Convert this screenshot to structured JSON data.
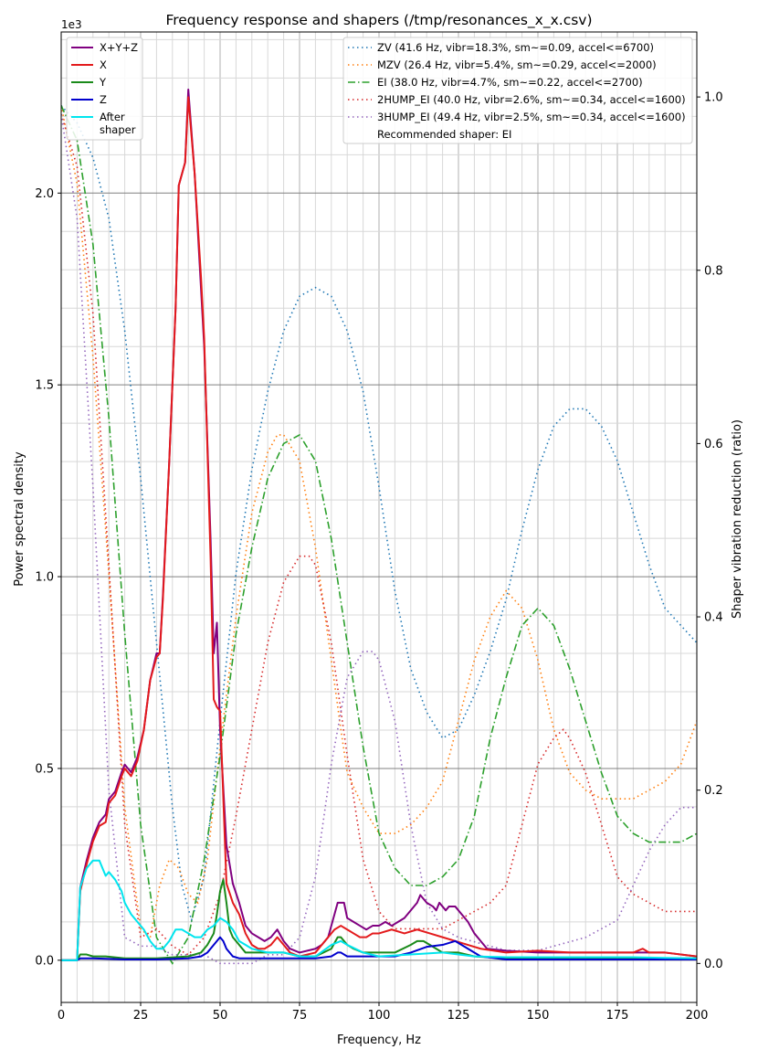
{
  "chart_data": {
    "type": "line",
    "title": "Frequency response and shapers (/tmp/resonances_x_x.csv)",
    "xlabel": "Frequency, Hz",
    "ylabel": "Power spectral density",
    "y2label": "Shaper vibration reduction (ratio)",
    "y_offset_label": "1e3",
    "xlim": [
      0,
      200
    ],
    "ylim": [
      -0.11,
      2.42
    ],
    "y2lim": [
      -0.045,
      1.075
    ],
    "grid": true,
    "legend_left": "upper-left",
    "legend_right": "upper-right",
    "x_ticks": [
      "0",
      "25",
      "50",
      "75",
      "100",
      "125",
      "150",
      "175",
      "200"
    ],
    "y_ticks": [
      "0.0",
      "0.5",
      "1.0",
      "1.5",
      "2.0"
    ],
    "y2_ticks": [
      "0.0",
      "0.2",
      "0.4",
      "0.6",
      "0.8",
      "1.0"
    ],
    "psd_series": [
      {
        "name": "X+Y+Z",
        "color": "#800080",
        "width": 2,
        "x": [
          0,
          5,
          6,
          8,
          10,
          12,
          14,
          15,
          17,
          19,
          20,
          22,
          24,
          26,
          28,
          30,
          31,
          32,
          34,
          36,
          37,
          39,
          40,
          42,
          44,
          45,
          47,
          48,
          49,
          50,
          52,
          54,
          56,
          58,
          60,
          62,
          64,
          66,
          68,
          70,
          72,
          75,
          80,
          82,
          84,
          86,
          87,
          88,
          89,
          90,
          92,
          94,
          96,
          98,
          100,
          102,
          104,
          106,
          108,
          110,
          112,
          113,
          115,
          117,
          118,
          119,
          120,
          121,
          122,
          124,
          126,
          128,
          130,
          132,
          134,
          140,
          150,
          160,
          170,
          180,
          190,
          200
        ],
        "y": [
          0,
          0,
          0.19,
          0.26,
          0.32,
          0.36,
          0.38,
          0.42,
          0.44,
          0.49,
          0.51,
          0.49,
          0.53,
          0.6,
          0.73,
          0.8,
          0.8,
          0.95,
          1.3,
          1.7,
          2.02,
          2.08,
          2.27,
          2.05,
          1.75,
          1.6,
          1.1,
          0.8,
          0.88,
          0.6,
          0.3,
          0.2,
          0.15,
          0.09,
          0.07,
          0.06,
          0.05,
          0.06,
          0.08,
          0.05,
          0.03,
          0.02,
          0.03,
          0.04,
          0.06,
          0.12,
          0.15,
          0.15,
          0.15,
          0.11,
          0.1,
          0.09,
          0.08,
          0.09,
          0.09,
          0.1,
          0.09,
          0.1,
          0.11,
          0.13,
          0.15,
          0.17,
          0.15,
          0.14,
          0.13,
          0.15,
          0.14,
          0.13,
          0.14,
          0.14,
          0.12,
          0.1,
          0.07,
          0.05,
          0.03,
          0.025,
          0.02,
          0.02,
          0.02,
          0.02,
          0.02,
          0.01
        ]
      },
      {
        "name": "X",
        "color": "#e31a1c",
        "width": 2,
        "x": [
          0,
          5,
          6,
          8,
          10,
          12,
          14,
          15,
          17,
          19,
          20,
          22,
          24,
          26,
          28,
          30,
          31,
          32,
          34,
          36,
          37,
          39,
          40,
          42,
          44,
          45,
          47,
          48,
          49,
          50,
          52,
          54,
          56,
          58,
          60,
          62,
          64,
          66,
          68,
          70,
          72,
          75,
          80,
          82,
          84,
          86,
          88,
          90,
          92,
          94,
          96,
          98,
          100,
          104,
          108,
          112,
          116,
          120,
          124,
          128,
          132,
          140,
          150,
          160,
          170,
          180,
          183,
          185,
          190,
          200
        ],
        "y": [
          0,
          0,
          0.18,
          0.25,
          0.31,
          0.35,
          0.36,
          0.41,
          0.43,
          0.48,
          0.5,
          0.48,
          0.52,
          0.6,
          0.73,
          0.79,
          0.8,
          0.94,
          1.3,
          1.7,
          2.02,
          2.08,
          2.25,
          2.05,
          1.78,
          1.62,
          1.05,
          0.68,
          0.66,
          0.65,
          0.2,
          0.15,
          0.12,
          0.07,
          0.04,
          0.03,
          0.03,
          0.04,
          0.06,
          0.04,
          0.02,
          0.01,
          0.02,
          0.04,
          0.06,
          0.08,
          0.09,
          0.08,
          0.07,
          0.06,
          0.06,
          0.07,
          0.07,
          0.08,
          0.07,
          0.08,
          0.07,
          0.06,
          0.05,
          0.04,
          0.03,
          0.02,
          0.025,
          0.02,
          0.02,
          0.02,
          0.03,
          0.02,
          0.02,
          0.01
        ]
      },
      {
        "name": "Y",
        "color": "#1a8a1a",
        "width": 2,
        "x": [
          0,
          5,
          6,
          8,
          10,
          14,
          20,
          30,
          40,
          44,
          46,
          48,
          49,
          50,
          51,
          52,
          53,
          54,
          56,
          58,
          60,
          65,
          70,
          75,
          80,
          85,
          87,
          88,
          90,
          92,
          95,
          100,
          105,
          110,
          112,
          114,
          116,
          118,
          120,
          125,
          130,
          140,
          150,
          160,
          170,
          180,
          200
        ],
        "y": [
          0,
          0,
          0.015,
          0.015,
          0.01,
          0.01,
          0.005,
          0.005,
          0.01,
          0.02,
          0.04,
          0.07,
          0.12,
          0.18,
          0.21,
          0.15,
          0.08,
          0.06,
          0.04,
          0.02,
          0.02,
          0.02,
          0.02,
          0.01,
          0.01,
          0.03,
          0.06,
          0.06,
          0.04,
          0.03,
          0.02,
          0.02,
          0.02,
          0.04,
          0.05,
          0.05,
          0.04,
          0.03,
          0.02,
          0.02,
          0.01,
          0.005,
          0.005,
          0.005,
          0.005,
          0.005,
          0.005
        ]
      },
      {
        "name": "Z",
        "color": "#0000cd",
        "width": 2,
        "x": [
          0,
          5,
          6,
          10,
          20,
          30,
          40,
          44,
          46,
          48,
          50,
          51,
          52,
          54,
          56,
          58,
          60,
          70,
          80,
          85,
          87,
          88,
          90,
          95,
          100,
          105,
          110,
          115,
          120,
          124,
          128,
          132,
          140,
          150,
          160,
          170,
          180,
          200
        ],
        "y": [
          0,
          0,
          0.005,
          0.005,
          0.002,
          0.002,
          0.005,
          0.01,
          0.02,
          0.04,
          0.06,
          0.05,
          0.03,
          0.01,
          0.005,
          0.005,
          0.005,
          0.005,
          0.005,
          0.01,
          0.02,
          0.02,
          0.01,
          0.01,
          0.01,
          0.01,
          0.02,
          0.035,
          0.04,
          0.05,
          0.03,
          0.01,
          0.002,
          0.002,
          0.002,
          0.002,
          0.002,
          0.002
        ]
      },
      {
        "name": "After\nshaper",
        "color": "#00e5ee",
        "width": 2,
        "x": [
          0,
          5,
          6,
          8,
          10,
          12,
          14,
          15,
          17,
          19,
          20,
          22,
          24,
          26,
          28,
          30,
          32,
          34,
          36,
          38,
          40,
          42,
          44,
          46,
          48,
          50,
          52,
          54,
          56,
          58,
          60,
          65,
          70,
          75,
          80,
          85,
          88,
          90,
          95,
          100,
          110,
          120,
          125,
          130,
          140,
          150,
          160,
          170,
          180,
          190,
          200
        ],
        "y": [
          0,
          0,
          0.19,
          0.24,
          0.26,
          0.26,
          0.22,
          0.23,
          0.21,
          0.18,
          0.15,
          0.12,
          0.1,
          0.08,
          0.05,
          0.03,
          0.03,
          0.05,
          0.08,
          0.08,
          0.07,
          0.06,
          0.06,
          0.08,
          0.09,
          0.11,
          0.1,
          0.08,
          0.05,
          0.04,
          0.03,
          0.02,
          0.02,
          0.01,
          0.01,
          0.04,
          0.05,
          0.04,
          0.02,
          0.01,
          0.015,
          0.02,
          0.015,
          0.01,
          0.008,
          0.008,
          0.008,
          0.008,
          0.008,
          0.006,
          0.005
        ]
      }
    ],
    "shaper_series": [
      {
        "name": "ZV (41.6 Hz, vibr=18.3%, sm~=0.09, accel<=6700)",
        "color": "#1f77b4",
        "dash": "1.5,3.5",
        "x": [
          0,
          5,
          10,
          15,
          20,
          25,
          30,
          35,
          38,
          41,
          45,
          50,
          55,
          60,
          65,
          70,
          75,
          80,
          85,
          90,
          95,
          100,
          105,
          110,
          115,
          120,
          125,
          130,
          135,
          140,
          145,
          150,
          155,
          160,
          165,
          170,
          175,
          180,
          185,
          190,
          195,
          200
        ],
        "y": [
          0.99,
          0.97,
          0.93,
          0.86,
          0.73,
          0.56,
          0.37,
          0.18,
          0.09,
          0.05,
          0.1,
          0.28,
          0.45,
          0.57,
          0.66,
          0.73,
          0.77,
          0.78,
          0.77,
          0.73,
          0.66,
          0.55,
          0.43,
          0.34,
          0.29,
          0.26,
          0.27,
          0.31,
          0.36,
          0.42,
          0.5,
          0.57,
          0.62,
          0.64,
          0.64,
          0.62,
          0.58,
          0.52,
          0.46,
          0.41,
          0.39,
          0.37
        ]
      },
      {
        "name": "MZV (26.4 Hz, vibr=5.4%, sm~=0.29, accel<=2000)",
        "color": "#ff7f0e",
        "dash": "1.5,3.5",
        "x": [
          0,
          5,
          10,
          15,
          20,
          25,
          28,
          31,
          34,
          37,
          40,
          43,
          46,
          50,
          55,
          60,
          65,
          68,
          70,
          75,
          80,
          85,
          88,
          90,
          95,
          100,
          105,
          110,
          115,
          120,
          125,
          130,
          135,
          140,
          145,
          150,
          155,
          160,
          165,
          170,
          175,
          180,
          185,
          190,
          195,
          200
        ],
        "y": [
          0.99,
          0.9,
          0.7,
          0.45,
          0.18,
          0.04,
          0.03,
          0.09,
          0.12,
          0.11,
          0.08,
          0.07,
          0.12,
          0.25,
          0.4,
          0.52,
          0.59,
          0.61,
          0.61,
          0.58,
          0.48,
          0.35,
          0.27,
          0.22,
          0.18,
          0.15,
          0.15,
          0.16,
          0.18,
          0.21,
          0.28,
          0.35,
          0.4,
          0.43,
          0.41,
          0.35,
          0.27,
          0.22,
          0.2,
          0.19,
          0.19,
          0.19,
          0.2,
          0.21,
          0.23,
          0.28
        ]
      },
      {
        "name": "EI (38.0 Hz, vibr=4.7%, sm~=0.22, accel<=2700)",
        "color": "#2ca02c",
        "dash": "8,3,1.5,3",
        "x": [
          0,
          5,
          10,
          15,
          20,
          25,
          30,
          35,
          40,
          45,
          50,
          55,
          60,
          65,
          70,
          75,
          80,
          85,
          90,
          95,
          100,
          105,
          110,
          115,
          120,
          125,
          130,
          135,
          140,
          145,
          150,
          155,
          160,
          165,
          170,
          175,
          180,
          185,
          190,
          195,
          200
        ],
        "y": [
          0.99,
          0.95,
          0.83,
          0.63,
          0.38,
          0.16,
          0.03,
          0.0,
          0.03,
          0.12,
          0.24,
          0.38,
          0.48,
          0.56,
          0.6,
          0.61,
          0.58,
          0.49,
          0.37,
          0.25,
          0.15,
          0.11,
          0.09,
          0.09,
          0.1,
          0.12,
          0.17,
          0.26,
          0.33,
          0.39,
          0.41,
          0.39,
          0.34,
          0.28,
          0.22,
          0.17,
          0.15,
          0.14,
          0.14,
          0.14,
          0.15
        ]
      },
      {
        "name": "2HUMP_EI (40.0 Hz, vibr=2.6%, sm~=0.34, accel<=1600)",
        "color": "#d62728",
        "dash": "1.5,3.5",
        "x": [
          0,
          5,
          10,
          15,
          20,
          25,
          30,
          35,
          40,
          45,
          50,
          55,
          60,
          65,
          70,
          75,
          78,
          80,
          85,
          90,
          95,
          100,
          105,
          110,
          115,
          120,
          125,
          130,
          135,
          140,
          145,
          150,
          155,
          158,
          160,
          165,
          170,
          175,
          180,
          185,
          190,
          195,
          200
        ],
        "y": [
          0.98,
          0.92,
          0.75,
          0.46,
          0.16,
          0.03,
          0.04,
          0.02,
          0.01,
          0.03,
          0.08,
          0.17,
          0.27,
          0.37,
          0.44,
          0.47,
          0.47,
          0.46,
          0.37,
          0.24,
          0.12,
          0.06,
          0.04,
          0.04,
          0.04,
          0.04,
          0.05,
          0.06,
          0.07,
          0.09,
          0.16,
          0.23,
          0.26,
          0.27,
          0.26,
          0.22,
          0.16,
          0.1,
          0.08,
          0.07,
          0.06,
          0.06,
          0.06
        ]
      },
      {
        "name": "3HUMP_EI (49.4 Hz, vibr=2.5%, sm~=0.34, accel<=1600)",
        "color": "#9467bd",
        "dash": "1.5,3.5",
        "x": [
          0,
          5,
          10,
          15,
          20,
          25,
          30,
          35,
          40,
          45,
          50,
          55,
          60,
          65,
          70,
          75,
          80,
          85,
          90,
          95,
          98,
          100,
          105,
          110,
          115,
          120,
          125,
          130,
          135,
          140,
          145,
          150,
          155,
          160,
          165,
          170,
          175,
          180,
          185,
          190,
          195,
          200
        ],
        "y": [
          0.98,
          0.86,
          0.55,
          0.2,
          0.03,
          0.02,
          0.02,
          0.01,
          0.01,
          0.01,
          0.0,
          0.0,
          0.0,
          0.01,
          0.01,
          0.03,
          0.1,
          0.23,
          0.33,
          0.36,
          0.36,
          0.35,
          0.28,
          0.16,
          0.07,
          0.04,
          0.03,
          0.025,
          0.02,
          0.015,
          0.015,
          0.015,
          0.02,
          0.025,
          0.03,
          0.04,
          0.05,
          0.09,
          0.13,
          0.16,
          0.18,
          0.18
        ]
      }
    ],
    "recommended_label": "Recommended shaper: EI"
  }
}
